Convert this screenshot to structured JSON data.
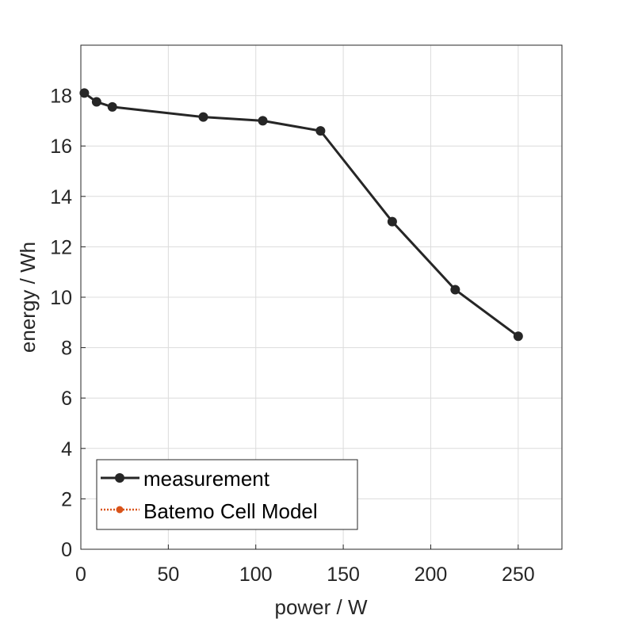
{
  "chart_data": {
    "type": "line",
    "xlabel": "power / W",
    "ylabel": "energy / Wh",
    "xlim": [
      0,
      275
    ],
    "ylim": [
      0,
      20
    ],
    "xticks": [
      0,
      50,
      100,
      150,
      200,
      250
    ],
    "yticks": [
      0,
      2,
      4,
      6,
      8,
      10,
      12,
      14,
      16,
      18
    ],
    "grid": true,
    "legend_position": "bottom-left",
    "series": [
      {
        "name": "measurement",
        "color": "#262626",
        "marker": "circle",
        "line": "solid",
        "x": [
          2,
          9,
          18,
          70,
          104,
          137,
          178,
          214,
          250
        ],
        "y": [
          18.1,
          17.75,
          17.55,
          17.15,
          17.0,
          16.6,
          13.0,
          10.3,
          8.45
        ]
      },
      {
        "name": "Batemo Cell Model",
        "color": "#d95319",
        "marker": "circle",
        "line": "dotted",
        "x": [],
        "y": []
      }
    ]
  }
}
